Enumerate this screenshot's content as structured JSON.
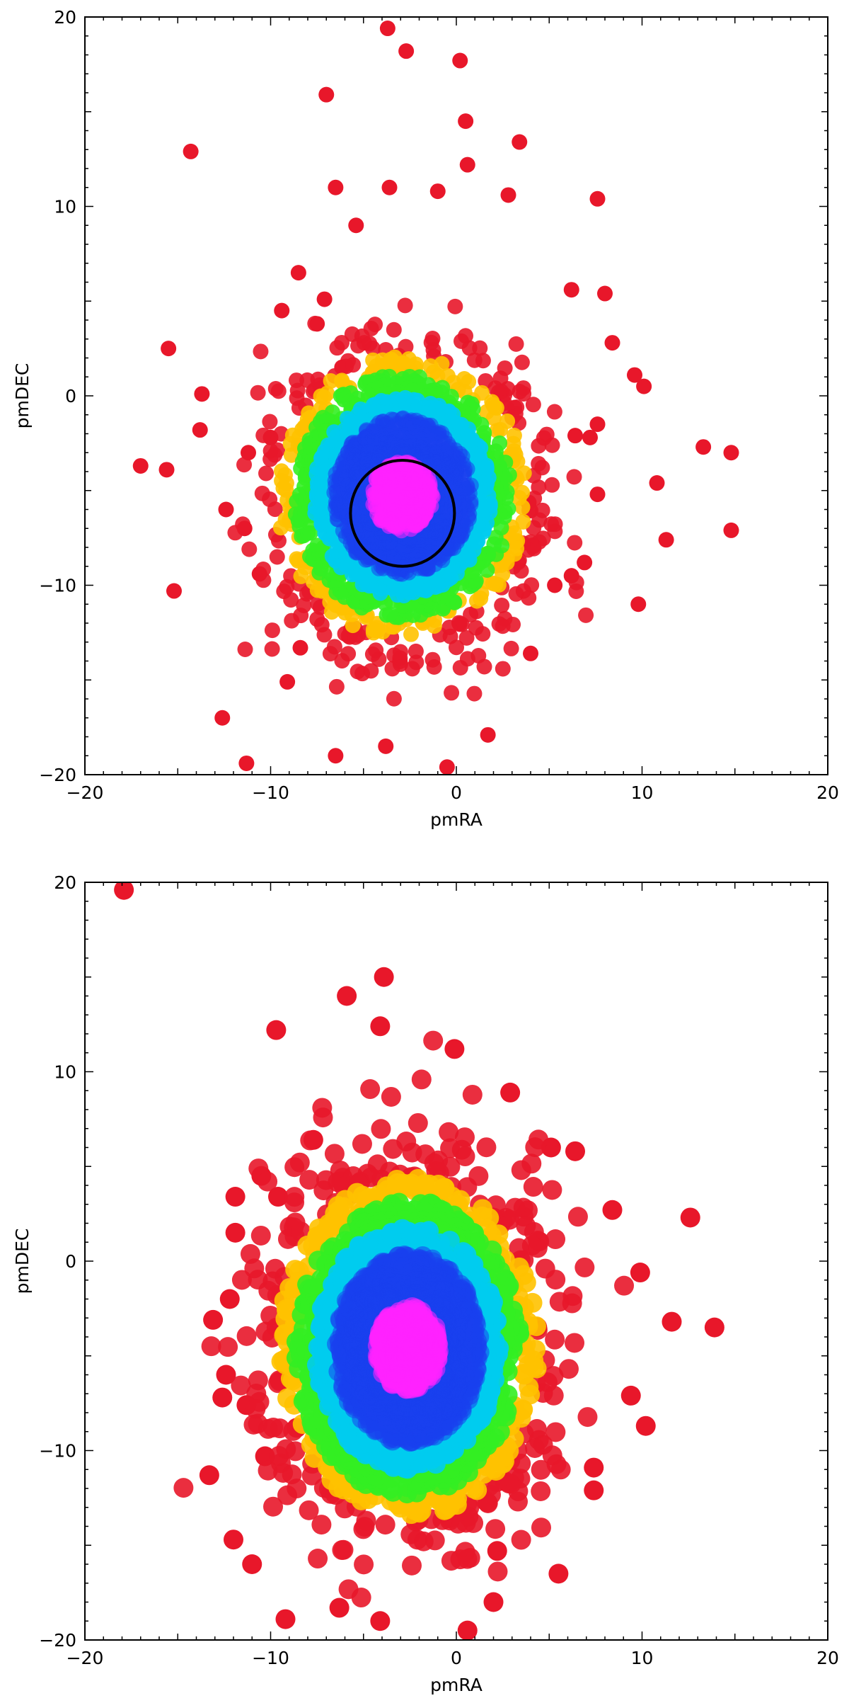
{
  "chart_data": [
    {
      "type": "scatter",
      "title": "",
      "xlabel": "pmRA",
      "ylabel": "pmDEC",
      "xlim": [
        -20,
        20
      ],
      "ylim": [
        -20,
        20
      ],
      "xticks": [
        -20,
        -10,
        0,
        10,
        20
      ],
      "yticks": [
        -20,
        -10,
        0,
        10,
        20
      ],
      "xtick_labels": [
        "−20",
        "−10",
        "0",
        "10",
        "20"
      ],
      "ytick_labels": [
        "−20",
        "−10",
        "0",
        "10",
        "20"
      ],
      "grid": false,
      "legend": "none",
      "color_scale": [
        "#e8172a",
        "#ffc200",
        "#33ee22",
        "#00ccee",
        "#1a40ee",
        "#ff22ff"
      ],
      "center": [
        -2.9,
        -5.3
      ],
      "spread": [
        3.0,
        3.3
      ],
      "highlight_circle": {
        "center": [
          -2.9,
          -6.2
        ],
        "radius": 2.8,
        "color": "#000000"
      },
      "outliers": [
        [
          -3.7,
          19.4
        ],
        [
          -2.7,
          18.2
        ],
        [
          0.2,
          17.7
        ],
        [
          -7.0,
          15.9
        ],
        [
          -14.3,
          12.9
        ],
        [
          3.4,
          13.4
        ],
        [
          0.5,
          14.5
        ],
        [
          0.6,
          12.2
        ],
        [
          -6.5,
          11.0
        ],
        [
          -3.6,
          11.0
        ],
        [
          -1.0,
          10.8
        ],
        [
          2.8,
          10.6
        ],
        [
          7.6,
          10.4
        ],
        [
          -15.5,
          2.5
        ],
        [
          -13.7,
          0.1
        ],
        [
          -13.8,
          -1.8
        ],
        [
          -17.0,
          -3.7
        ],
        [
          -15.6,
          -3.9
        ],
        [
          -15.2,
          -10.3
        ],
        [
          -12.6,
          -17.0
        ],
        [
          -11.3,
          -19.4
        ],
        [
          13.3,
          -2.7
        ],
        [
          14.8,
          -3.0
        ],
        [
          10.8,
          -4.6
        ],
        [
          11.3,
          -7.6
        ],
        [
          14.8,
          -7.1
        ],
        [
          9.8,
          -11.0
        ],
        [
          10.1,
          0.5
        ],
        [
          9.6,
          1.1
        ],
        [
          8.4,
          2.8
        ],
        [
          8.0,
          5.4
        ],
        [
          6.2,
          5.6
        ],
        [
          7.6,
          -1.5
        ],
        [
          6.4,
          -2.1
        ],
        [
          7.2,
          -2.2
        ],
        [
          7.6,
          -5.2
        ],
        [
          6.9,
          -8.8
        ],
        [
          6.2,
          -9.5
        ],
        [
          4.0,
          -13.6
        ],
        [
          1.7,
          -17.9
        ],
        [
          -0.5,
          -19.6
        ],
        [
          -3.8,
          -18.5
        ],
        [
          -6.5,
          -19.0
        ],
        [
          -8.4,
          -13.3
        ],
        [
          -9.1,
          -15.1
        ],
        [
          -10.6,
          -9.4
        ],
        [
          -12.4,
          -6.0
        ],
        [
          -11.4,
          -7.0
        ],
        [
          -11.2,
          -3.0
        ],
        [
          -10.0,
          -2.2
        ],
        [
          -9.4,
          4.5
        ],
        [
          -8.5,
          6.5
        ],
        [
          -7.5,
          3.8
        ],
        [
          -5.4,
          9.0
        ],
        [
          -7.1,
          5.1
        ],
        [
          5.3,
          -10.0
        ]
      ]
    },
    {
      "type": "scatter",
      "title": "",
      "xlabel": "pmRA",
      "ylabel": "pmDEC",
      "xlim": [
        -20,
        20
      ],
      "ylim": [
        -20,
        20
      ],
      "xticks": [
        -20,
        -10,
        0,
        10,
        20
      ],
      "yticks": [
        -20,
        -10,
        0,
        10,
        20
      ],
      "xtick_labels": [
        "−20",
        "−10",
        "0",
        "10",
        "20"
      ],
      "ytick_labels": [
        "−20",
        "−10",
        "0",
        "10",
        "20"
      ],
      "grid": false,
      "legend": "none",
      "color_scale": [
        "#e8172a",
        "#ffc200",
        "#33ee22",
        "#00ccee",
        "#1a40ee",
        "#ff22ff"
      ],
      "center": [
        -2.6,
        -4.6
      ],
      "spread": [
        3.1,
        4.0
      ],
      "outliers": [
        [
          -17.9,
          19.6
        ],
        [
          -3.9,
          15.0
        ],
        [
          -5.9,
          14.0
        ],
        [
          -4.1,
          12.4
        ],
        [
          -9.7,
          12.2
        ],
        [
          -0.1,
          11.2
        ],
        [
          2.9,
          8.9
        ],
        [
          6.4,
          5.8
        ],
        [
          5.1,
          6.0
        ],
        [
          12.6,
          2.3
        ],
        [
          8.4,
          2.7
        ],
        [
          9.9,
          -0.6
        ],
        [
          13.9,
          -3.5
        ],
        [
          11.6,
          -3.2
        ],
        [
          9.4,
          -7.1
        ],
        [
          10.2,
          -8.7
        ],
        [
          7.4,
          -10.9
        ],
        [
          7.4,
          -12.1
        ],
        [
          5.5,
          -16.5
        ],
        [
          2.2,
          -15.3
        ],
        [
          2.0,
          -18.0
        ],
        [
          0.6,
          -19.5
        ],
        [
          -4.1,
          -19.0
        ],
        [
          -6.3,
          -18.3
        ],
        [
          -9.2,
          -18.9
        ],
        [
          -11.0,
          -16.0
        ],
        [
          -12.0,
          -14.7
        ],
        [
          -13.3,
          -11.3
        ],
        [
          -10.3,
          -10.3
        ],
        [
          -12.4,
          -6.0
        ],
        [
          -12.6,
          -7.2
        ],
        [
          -13.1,
          -3.1
        ],
        [
          -12.2,
          -2.0
        ],
        [
          -11.9,
          1.5
        ],
        [
          -11.9,
          3.4
        ],
        [
          -10.5,
          4.5
        ],
        [
          -9.6,
          3.4
        ],
        [
          -7.7,
          6.4
        ],
        [
          -8.6,
          -8.8
        ],
        [
          -11.3,
          -7.6
        ]
      ]
    }
  ]
}
